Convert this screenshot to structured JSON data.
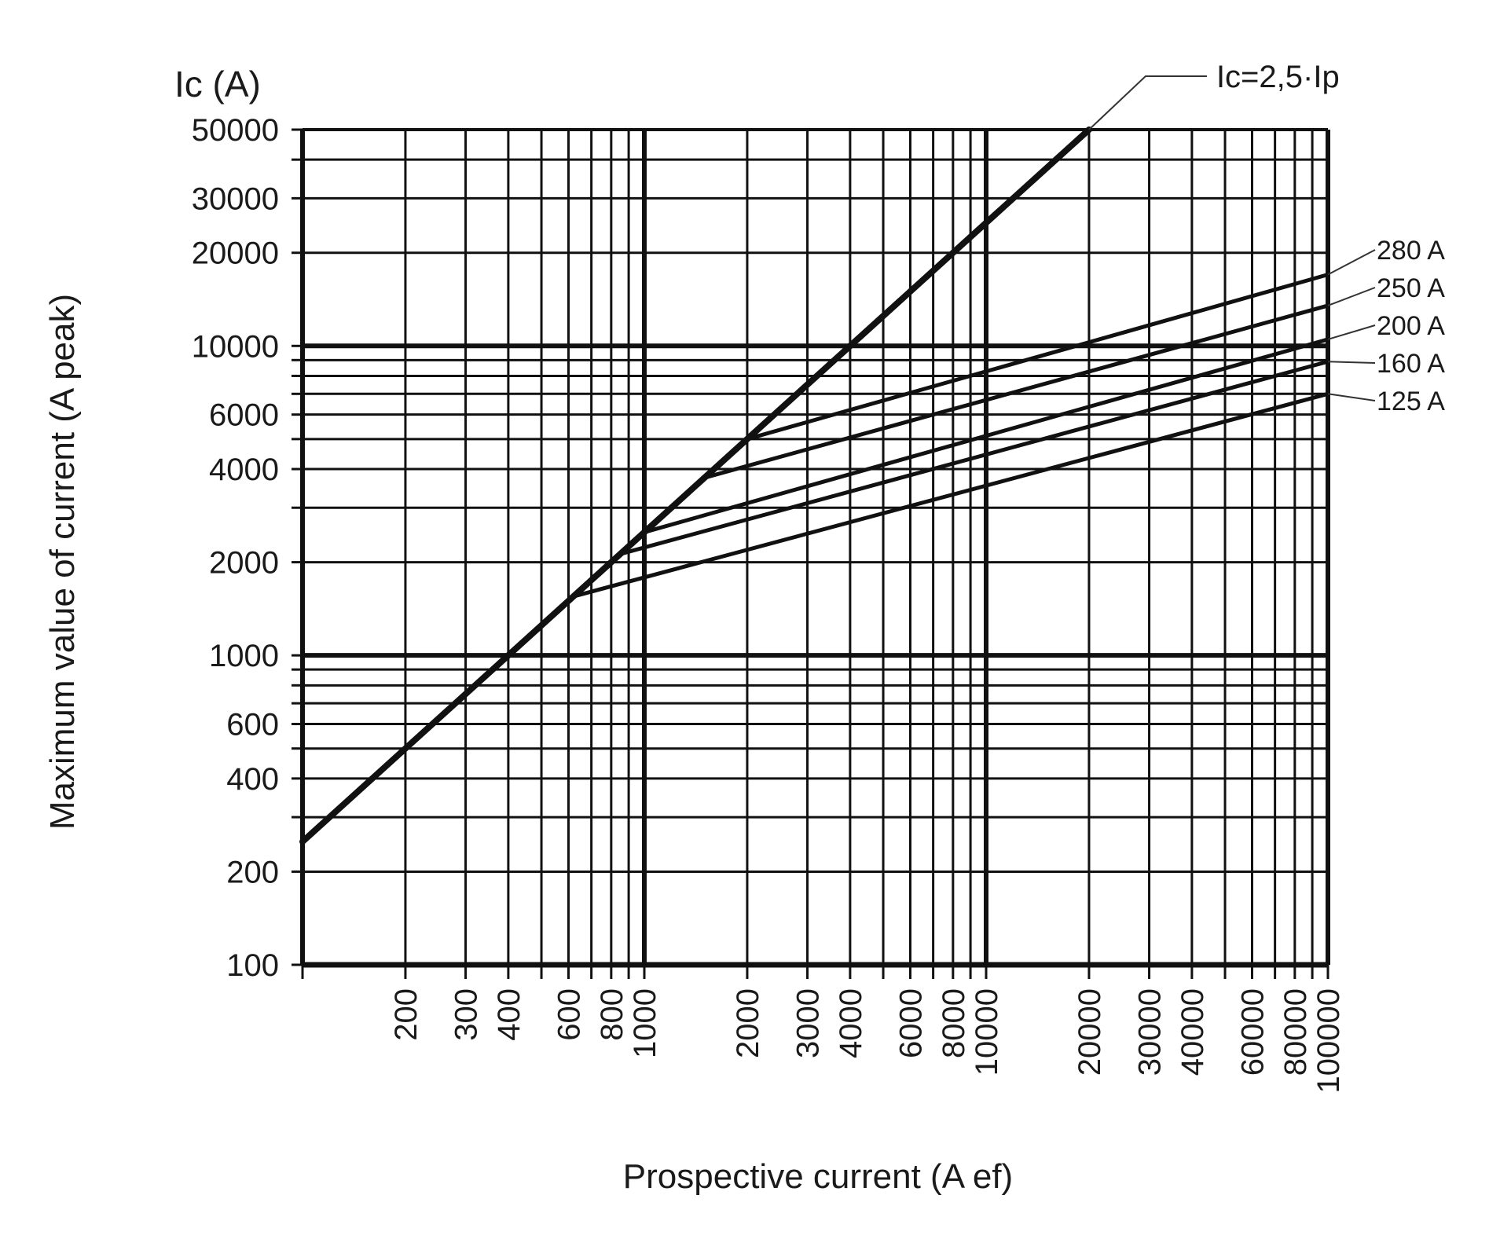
{
  "chart_data": {
    "type": "line",
    "xscale": "log",
    "yscale": "log",
    "xlim": [
      100,
      100000
    ],
    "ylim": [
      100,
      50000
    ],
    "xlabel": "Prospective current (A ef)",
    "ylabel": "Maximum value of current (A peak)",
    "y_unit_label": "Ic (A)",
    "grid": true,
    "x_ticks": [
      {
        "value": 200,
        "label": "200"
      },
      {
        "value": 300,
        "label": "300"
      },
      {
        "value": 400,
        "label": "400"
      },
      {
        "value": 600,
        "label": "600"
      },
      {
        "value": 800,
        "label": "800"
      },
      {
        "value": 1000,
        "label": "1000"
      },
      {
        "value": 2000,
        "label": "2000"
      },
      {
        "value": 3000,
        "label": "3000"
      },
      {
        "value": 4000,
        "label": "4000"
      },
      {
        "value": 6000,
        "label": "6000"
      },
      {
        "value": 8000,
        "label": "8000"
      },
      {
        "value": 10000,
        "label": "10000"
      },
      {
        "value": 20000,
        "label": "20000"
      },
      {
        "value": 30000,
        "label": "30000"
      },
      {
        "value": 40000,
        "label": "40000"
      },
      {
        "value": 60000,
        "label": "60000"
      },
      {
        "value": 80000,
        "label": "80000"
      },
      {
        "value": 100000,
        "label": "100000"
      }
    ],
    "y_ticks": [
      {
        "value": 100,
        "label": "100"
      },
      {
        "value": 200,
        "label": "200"
      },
      {
        "value": 400,
        "label": "400"
      },
      {
        "value": 600,
        "label": "600"
      },
      {
        "value": 1000,
        "label": "1000"
      },
      {
        "value": 2000,
        "label": "2000"
      },
      {
        "value": 4000,
        "label": "4000"
      },
      {
        "value": 6000,
        "label": "6000"
      },
      {
        "value": 10000,
        "label": "10000"
      },
      {
        "value": 20000,
        "label": "20000"
      },
      {
        "value": 30000,
        "label": "30000"
      },
      {
        "value": 50000,
        "label": "50000"
      }
    ],
    "series": [
      {
        "name": "Ic=2,5·Ip",
        "points": [
          [
            100,
            250
          ],
          [
            20000,
            50000
          ]
        ]
      },
      {
        "name": "280 A",
        "points": [
          [
            2000,
            5000
          ],
          [
            100000,
            17000
          ]
        ]
      },
      {
        "name": "250 A",
        "points": [
          [
            1500,
            3750
          ],
          [
            100000,
            13500
          ]
        ]
      },
      {
        "name": "200 A",
        "points": [
          [
            1000,
            2500
          ],
          [
            100000,
            10500
          ]
        ]
      },
      {
        "name": "160 A",
        "points": [
          [
            850,
            2125
          ],
          [
            100000,
            8900
          ]
        ]
      },
      {
        "name": "125 A",
        "points": [
          [
            620,
            1550
          ],
          [
            100000,
            7000
          ]
        ]
      }
    ]
  }
}
